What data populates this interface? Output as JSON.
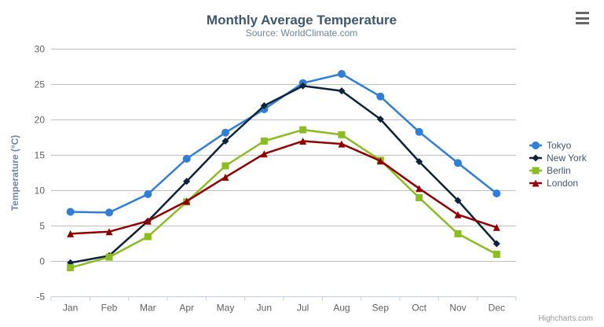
{
  "chart_data": {
    "type": "line",
    "title": "Monthly Average Temperature",
    "subtitle": "Source: WorldClimate.com",
    "xlabel": "",
    "ylabel": "Temperature (°C)",
    "categories": [
      "Jan",
      "Feb",
      "Mar",
      "Apr",
      "May",
      "Jun",
      "Jul",
      "Aug",
      "Sep",
      "Oct",
      "Nov",
      "Dec"
    ],
    "series": [
      {
        "name": "Tokyo",
        "color": "#2f7ed8",
        "marker": "circle",
        "values": [
          7.0,
          6.9,
          9.5,
          14.5,
          18.2,
          21.5,
          25.2,
          26.5,
          23.3,
          18.3,
          13.9,
          9.6
        ]
      },
      {
        "name": "New York",
        "color": "#0d233a",
        "marker": "diamond",
        "values": [
          -0.2,
          0.8,
          5.7,
          11.3,
          17.0,
          22.0,
          24.8,
          24.1,
          20.1,
          14.1,
          8.6,
          2.5
        ]
      },
      {
        "name": "Berlin",
        "color": "#8bbc21",
        "marker": "square",
        "values": [
          -0.9,
          0.6,
          3.5,
          8.4,
          13.5,
          17.0,
          18.6,
          17.9,
          14.3,
          9.0,
          3.9,
          1.0
        ]
      },
      {
        "name": "London",
        "color": "#910000",
        "marker": "triangle",
        "values": [
          3.9,
          4.2,
          5.7,
          8.5,
          11.9,
          15.2,
          17.0,
          16.6,
          14.2,
          10.3,
          6.6,
          4.8
        ]
      }
    ],
    "ylim": [
      -5,
      30
    ],
    "ytick_step": 5,
    "grid": true,
    "legend_position": "right"
  },
  "credits": {
    "label": "Highcharts.com"
  },
  "theme": {
    "grid_color": "#C0C0C0",
    "axis_line_color": "#C0D0E0",
    "title_color": "#3E576F",
    "subtitle_color": "#6D869F",
    "tick_label_color": "#606060",
    "legend_text_color": "#3E576F",
    "credits_color": "#999999",
    "menu_icon_color": "#666666",
    "background_color": "#FFFFFF"
  }
}
